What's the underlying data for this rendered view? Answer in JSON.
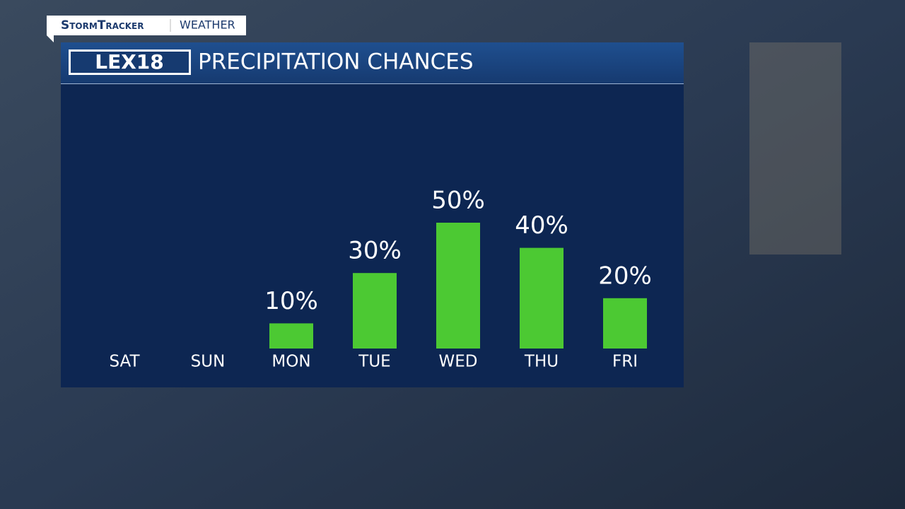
{
  "brand": {
    "show": "StormTracker",
    "section": "WEATHER",
    "logo": "LEX18"
  },
  "chart_data": {
    "type": "bar",
    "title": "PRECIPITATION CHANCES",
    "categories": [
      "SAT",
      "SUN",
      "MON",
      "TUE",
      "WED",
      "THU",
      "FRI"
    ],
    "values": [
      null,
      null,
      10,
      30,
      50,
      40,
      20
    ],
    "value_labels": [
      null,
      null,
      "10%",
      "30%",
      "50%",
      "40%",
      "20%"
    ],
    "color": "#4cc933"
  }
}
